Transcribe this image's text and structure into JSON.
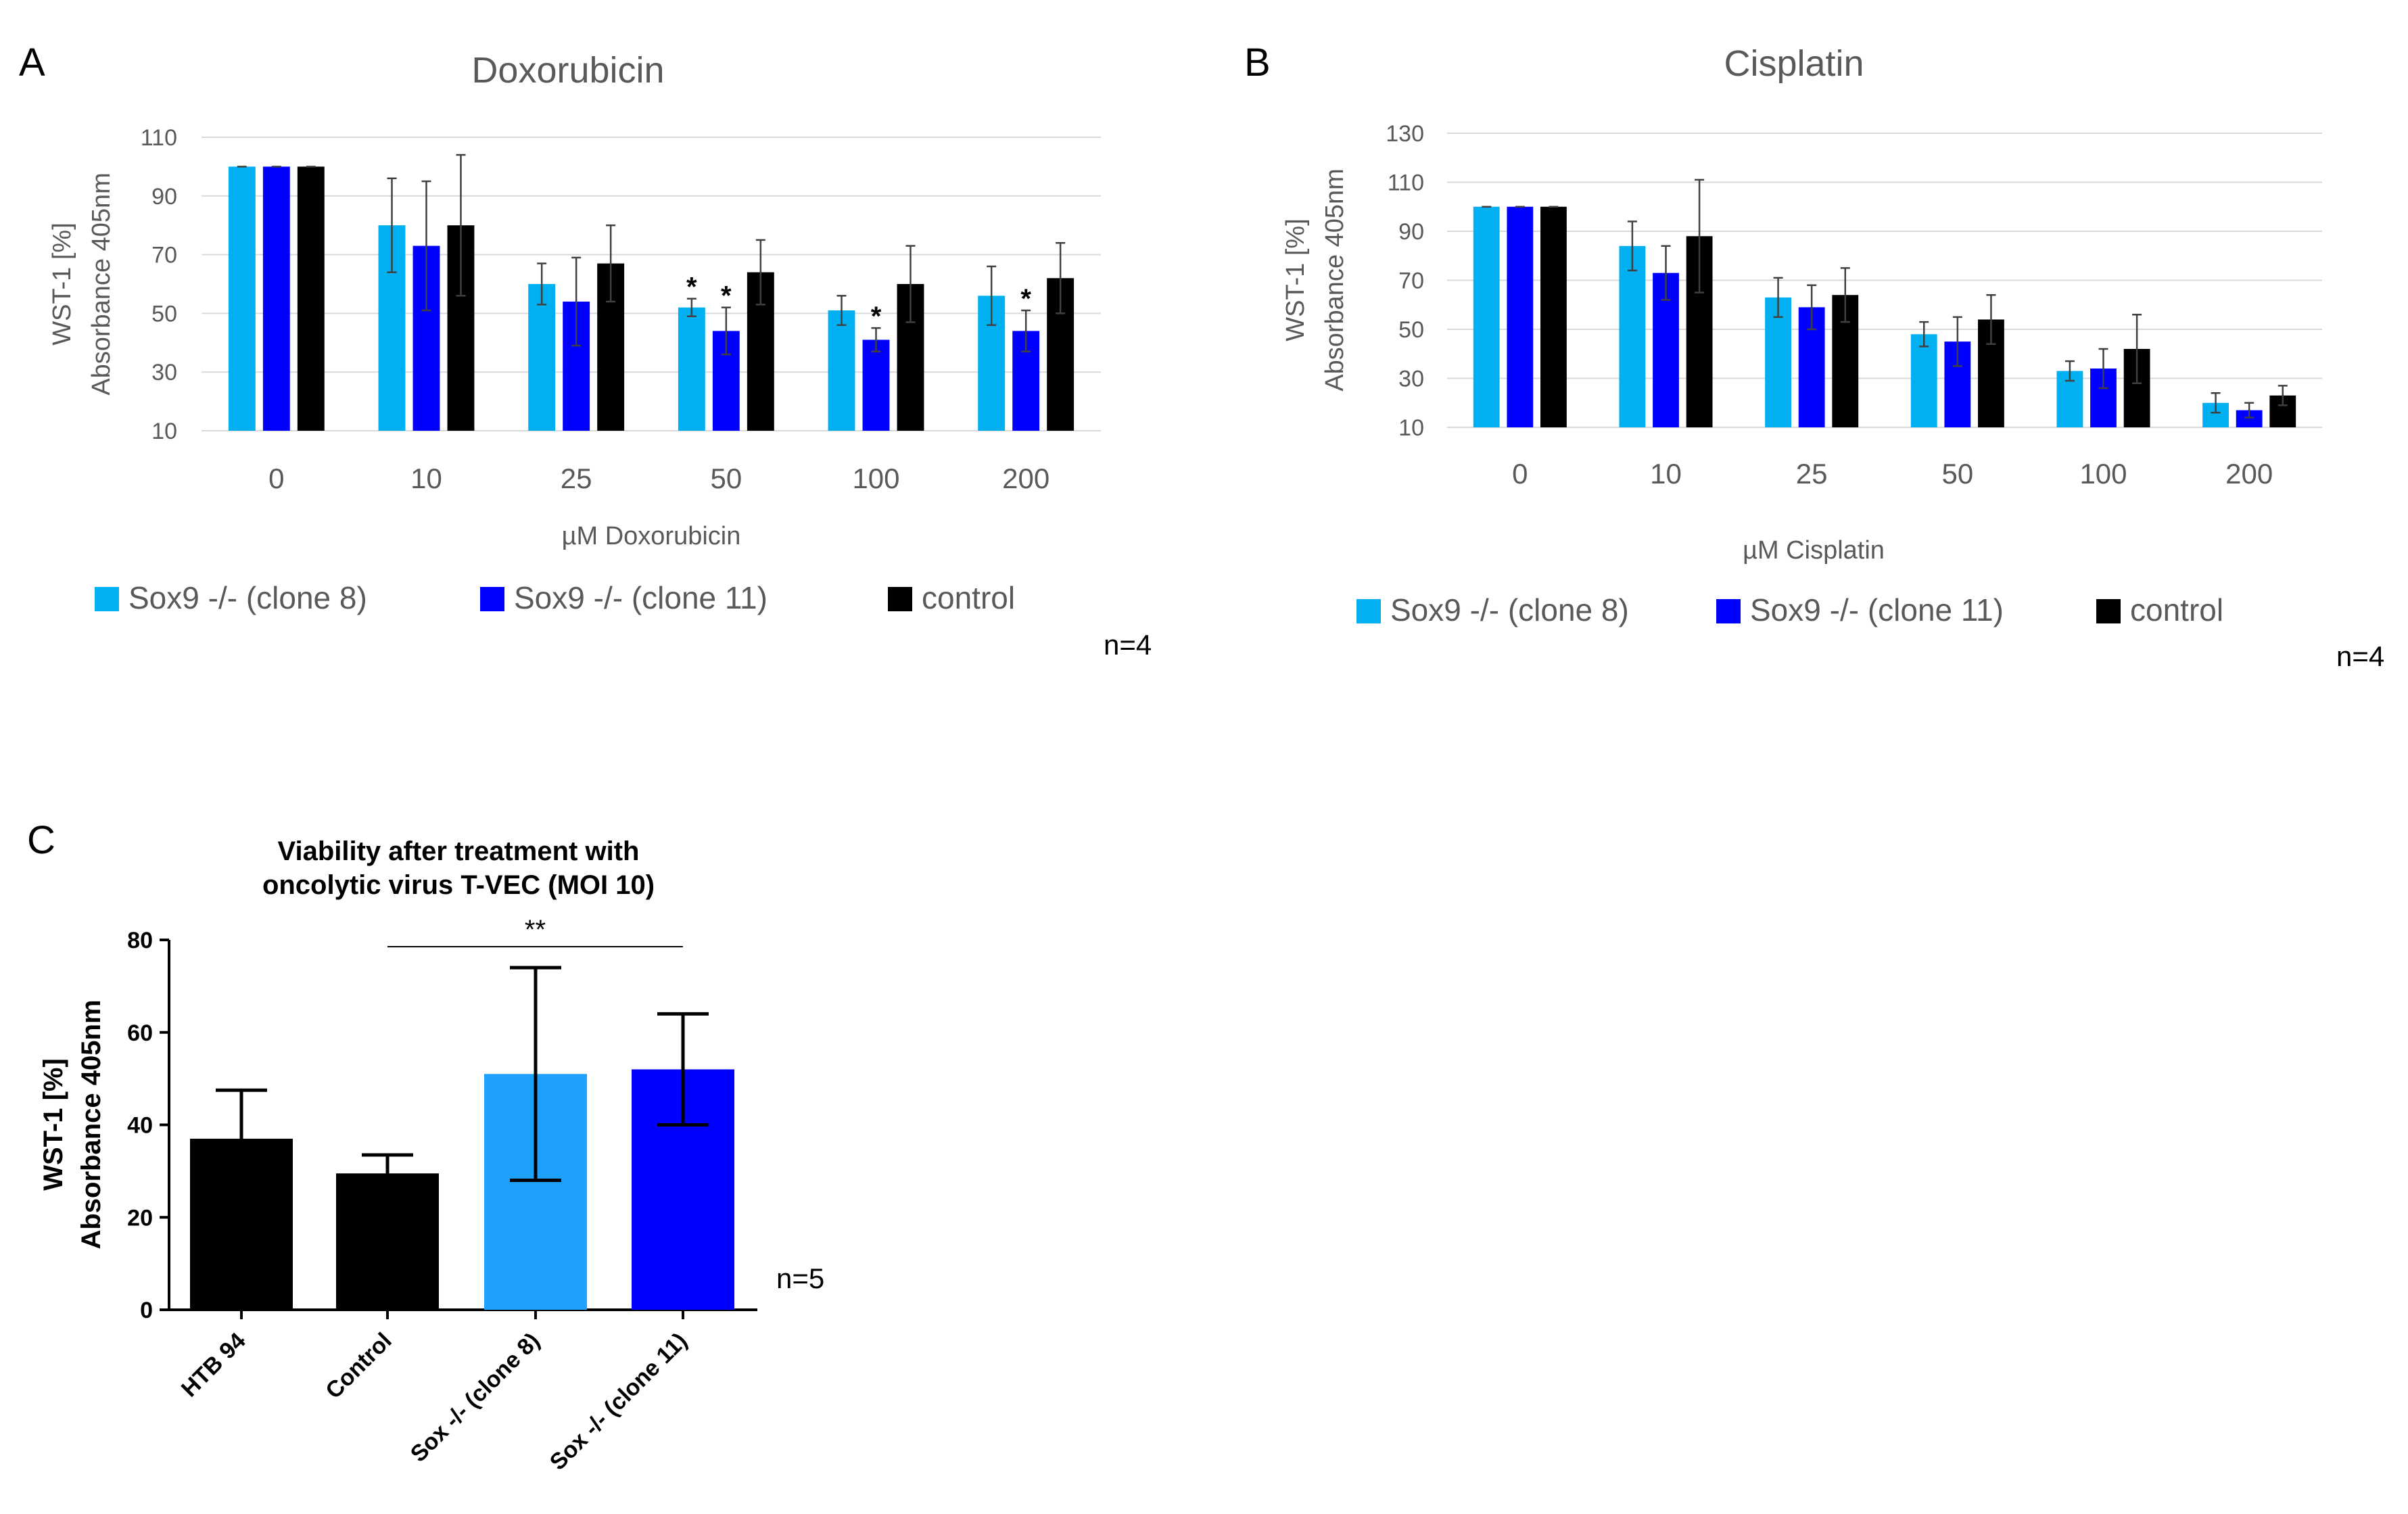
{
  "panels": [
    {
      "letter": "A"
    },
    {
      "letter": "B"
    },
    {
      "letter": "C"
    }
  ],
  "colors": {
    "clone8": "#00B0F0",
    "clone11": "#0000FF",
    "control": "#000000",
    "c_clone8": "#1EA0FF",
    "grid": "#D9D9D9",
    "text": "#595959"
  },
  "chart_data": [
    {
      "id": "A",
      "type": "bar",
      "title": "Doxorubicin",
      "xlabel": "µM Doxorubicin",
      "ylabel_lines": [
        "WST-1 [%]",
        "Absorbance 405nm"
      ],
      "ylim": [
        10,
        110
      ],
      "yticks": [
        10,
        30,
        50,
        70,
        90,
        110
      ],
      "grid": true,
      "categories": [
        "0",
        "10",
        "25",
        "50",
        "100",
        "200"
      ],
      "series": [
        {
          "name": "Sox9 -/- (clone 8)",
          "values": [
            100,
            80,
            60,
            52,
            51,
            56
          ],
          "errors": [
            0,
            16,
            7,
            3,
            5,
            10
          ]
        },
        {
          "name": "Sox9 -/- (clone 11)",
          "values": [
            100,
            73,
            54,
            44,
            41,
            44
          ],
          "errors": [
            0,
            22,
            15,
            8,
            4,
            7
          ]
        },
        {
          "name": "control",
          "values": [
            100,
            80,
            67,
            64,
            60,
            62
          ],
          "errors": [
            0,
            24,
            13,
            11,
            13,
            12
          ]
        }
      ],
      "annotations": [
        {
          "category": "50",
          "series": 0,
          "text": "*"
        },
        {
          "category": "50",
          "series": 1,
          "text": "*"
        },
        {
          "category": "100",
          "series": 1,
          "text": "*"
        },
        {
          "category": "200",
          "series": 1,
          "text": "*"
        }
      ],
      "legend": "bottom",
      "n": "n=4"
    },
    {
      "id": "B",
      "type": "bar",
      "title": "Cisplatin",
      "xlabel": "µM Cisplatin",
      "ylabel_lines": [
        "WST-1 [%]",
        "Absorbance 405nm"
      ],
      "ylim": [
        10,
        130
      ],
      "yticks": [
        10,
        30,
        50,
        70,
        90,
        110,
        130
      ],
      "grid": true,
      "categories": [
        "0",
        "10",
        "25",
        "50",
        "100",
        "200"
      ],
      "series": [
        {
          "name": "Sox9 -/- (clone 8)",
          "values": [
            100,
            84,
            63,
            48,
            33,
            20
          ],
          "errors": [
            0,
            10,
            8,
            5,
            4,
            4
          ]
        },
        {
          "name": "Sox9 -/- (clone 11)",
          "values": [
            100,
            73,
            59,
            45,
            34,
            17
          ],
          "errors": [
            0,
            11,
            9,
            10,
            8,
            3
          ]
        },
        {
          "name": "control",
          "values": [
            100,
            88,
            64,
            54,
            42,
            23
          ],
          "errors": [
            0,
            23,
            11,
            10,
            14,
            4
          ]
        }
      ],
      "legend": "bottom",
      "n": "n=4"
    },
    {
      "id": "C",
      "type": "bar",
      "title_lines": [
        "Viability after treatment with",
        "oncolytic virus T-VEC (MOI 10)"
      ],
      "ylabel_lines": [
        "WST-1 [%]",
        "Absorbance 405nm"
      ],
      "ylim": [
        0,
        80
      ],
      "yticks": [
        0,
        20,
        40,
        60,
        80
      ],
      "grid": false,
      "categories": [
        "HTB 94",
        "Control",
        "Sox -/- (clone 8)",
        "Sox -/- (clone 11)"
      ],
      "values": [
        37,
        29.5,
        51,
        52
      ],
      "errors": [
        10.5,
        4,
        23,
        12
      ],
      "bar_colors": [
        "#000000",
        "#000000",
        "#1EA0FF",
        "#0000FF"
      ],
      "significance": {
        "from": "Control",
        "to": "Sox -/- (clone 11)",
        "text": "**"
      },
      "n": "n=5"
    }
  ]
}
